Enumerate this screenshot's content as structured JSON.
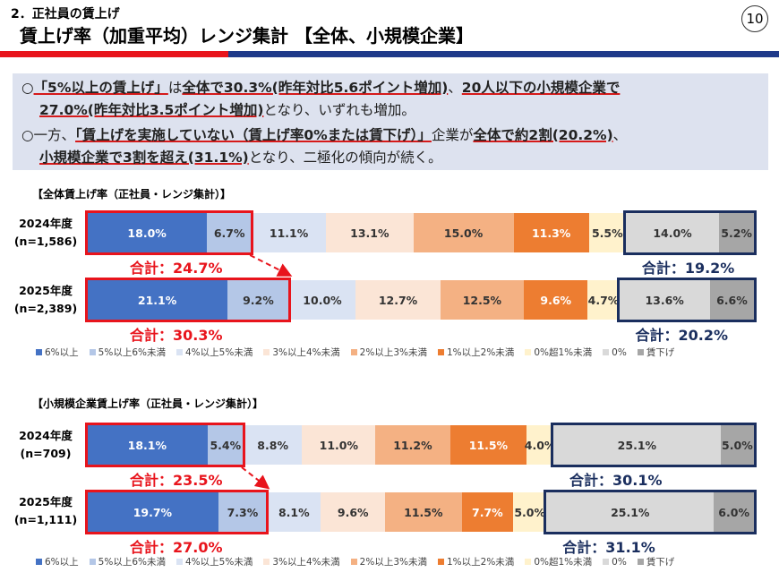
{
  "header": {
    "subtitle": "2．正社員の賃上げ",
    "title": "賃上げ率（加重平均）レンジ集計 【全体、小規模企業】",
    "page_number": "10"
  },
  "summary": {
    "b1": [
      "○",
      "「5%以上の賃上げ」",
      "は",
      "全体で30.3%(昨年対比5.6ポイント増加)",
      "、",
      "20人以下の小規模企業で",
      "27.0%(昨年対比3.5ポイント増加)",
      "となり、いずれも増加。"
    ],
    "b2": [
      "○",
      "一方、",
      "「賃上げを実施していない（賃上げ率0%または賃下げ）」",
      "企業が",
      "全体で約2割(20.2%)",
      "、",
      "小規模企業で3割を超え(31.1%)",
      "となり、二極化の傾向が続く。"
    ]
  },
  "colors": [
    "#4472c4",
    "#b4c7e7",
    "#dae3f3",
    "#fbe5d6",
    "#f4b183",
    "#ed7d31",
    "#fff2cc",
    "#d9d9d9",
    "#a6a6a6"
  ],
  "highlight_colors": {
    "red": "#e8141c",
    "blue": "#1a2e5e"
  },
  "chart_data": [
    {
      "type": "bar",
      "stacked": true,
      "orientation": "horizontal",
      "title": "【全体賃上げ率（正社員・レンジ集計）】",
      "categories": [
        "6%以上",
        "5%以上6%未満",
        "4%以上5%未満",
        "3%以上4%未満",
        "2%以上3%未満",
        "1%以上2%未満",
        "0%超1%未満",
        "0%",
        "賃下げ"
      ],
      "rows": [
        {
          "year": "2024年度",
          "n": "(n=1,586)",
          "values": [
            18.0,
            6.7,
            11.1,
            13.1,
            15.0,
            11.3,
            5.5,
            14.0,
            5.2
          ],
          "total_high": "合計：24.7%",
          "total_low": "合計：19.2%"
        },
        {
          "year": "2025年度",
          "n": "(n=2,389)",
          "values": [
            21.1,
            9.2,
            10.0,
            12.7,
            12.5,
            9.6,
            4.7,
            13.6,
            6.6
          ],
          "total_high": "合計：30.3%",
          "total_low": "合計：20.2%"
        }
      ]
    },
    {
      "type": "bar",
      "stacked": true,
      "orientation": "horizontal",
      "title": "【小規模企業賃上げ率（正社員・レンジ集計）】",
      "categories": [
        "6%以上",
        "5%以上6%未満",
        "4%以上5%未満",
        "3%以上4%未満",
        "2%以上3%未満",
        "1%以上2%未満",
        "0%超1%未満",
        "0%",
        "賃下げ"
      ],
      "rows": [
        {
          "year": "2024年度",
          "n": "(n=709)",
          "values": [
            18.1,
            5.4,
            8.8,
            11.0,
            11.2,
            11.5,
            4.0,
            25.1,
            5.0
          ],
          "total_high": "合計：23.5%",
          "total_low": "合計：30.1%"
        },
        {
          "year": "2025年度",
          "n": "(n=1,111)",
          "values": [
            19.7,
            7.3,
            8.1,
            9.6,
            11.5,
            7.7,
            5.0,
            25.1,
            6.0
          ],
          "total_high": "合計：27.0%",
          "total_low": "合計：31.1%"
        }
      ]
    }
  ]
}
